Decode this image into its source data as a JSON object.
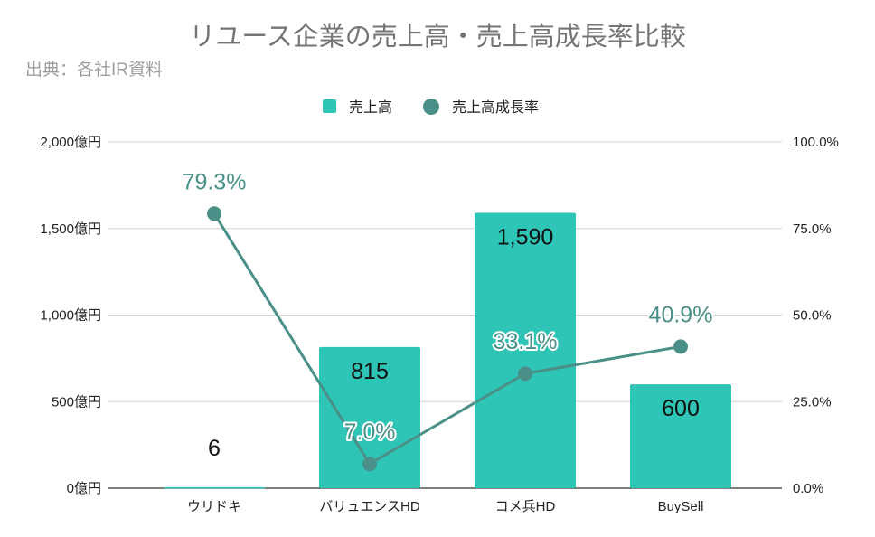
{
  "chart_data": {
    "type": "bar+line",
    "title": "リユース企業の売上高・売上高成長率比較",
    "subtitle": "出典：各社IR資料",
    "categories": [
      "ウリドキ",
      "バリュエンスHD",
      "コメ兵HD",
      "BuySell"
    ],
    "series": [
      {
        "name": "売上高",
        "type": "bar",
        "axis": "left",
        "values": [
          6,
          815,
          1590,
          600
        ],
        "labels": [
          "6",
          "815",
          "1,590",
          "600"
        ],
        "color": "#2ec4b6"
      },
      {
        "name": "売上高成長率",
        "type": "line",
        "axis": "right",
        "values": [
          79.3,
          7.0,
          33.1,
          40.9
        ],
        "labels": [
          "79.3%",
          "7.0%",
          "33.1%",
          "40.9%"
        ],
        "color": "#4a9088"
      }
    ],
    "left_axis": {
      "range": [
        0,
        2000
      ],
      "ticks": [
        "0億円",
        "500億円",
        "1,000億円",
        "1,500億円",
        "2,000億円"
      ]
    },
    "right_axis": {
      "range": [
        0,
        100
      ],
      "ticks": [
        "0.0%",
        "25.0%",
        "50.0%",
        "75.0%",
        "100.0%"
      ]
    },
    "legend_position": "top",
    "grid": true
  }
}
